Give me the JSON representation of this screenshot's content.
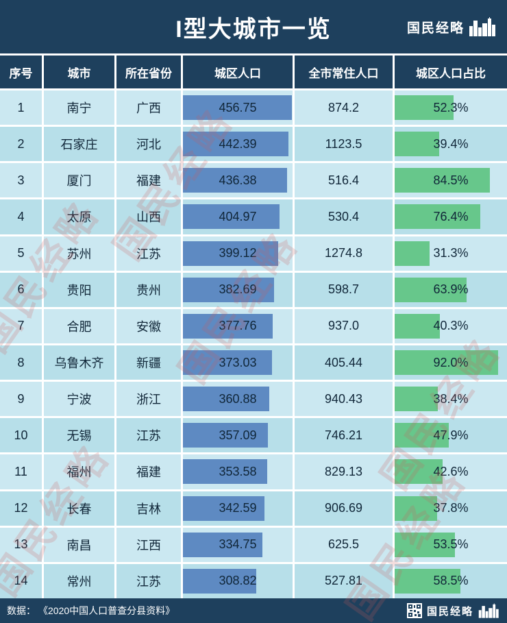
{
  "title": "I型大城市一览",
  "brand": {
    "name": "国民经略"
  },
  "watermark": {
    "text": "国民经略"
  },
  "table": {
    "headers": [
      "序号",
      "城市",
      "所在省份",
      "城区人口",
      "全市常住人口",
      "城区人口占比"
    ],
    "rows": [
      {
        "no": "1",
        "city": "南宁",
        "province": "广西",
        "urban": "456.75",
        "total": "874.2",
        "share": "52.3%"
      },
      {
        "no": "2",
        "city": "石家庄",
        "province": "河北",
        "urban": "442.39",
        "total": "1123.5",
        "share": "39.4%"
      },
      {
        "no": "3",
        "city": "厦门",
        "province": "福建",
        "urban": "436.38",
        "total": "516.4",
        "share": "84.5%"
      },
      {
        "no": "4",
        "city": "太原",
        "province": "山西",
        "urban": "404.97",
        "total": "530.4",
        "share": "76.4%"
      },
      {
        "no": "5",
        "city": "苏州",
        "province": "江苏",
        "urban": "399.12",
        "total": "1274.8",
        "share": "31.3%"
      },
      {
        "no": "6",
        "city": "贵阳",
        "province": "贵州",
        "urban": "382.69",
        "total": "598.7",
        "share": "63.9%"
      },
      {
        "no": "7",
        "city": "合肥",
        "province": "安徽",
        "urban": "377.76",
        "total": "937.0",
        "share": "40.3%"
      },
      {
        "no": "8",
        "city": "乌鲁木齐",
        "province": "新疆",
        "urban": "373.03",
        "total": "405.44",
        "share": "92.0%"
      },
      {
        "no": "9",
        "city": "宁波",
        "province": "浙江",
        "urban": "360.88",
        "total": "940.43",
        "share": "38.4%"
      },
      {
        "no": "10",
        "city": "无锡",
        "province": "江苏",
        "urban": "357.09",
        "total": "746.21",
        "share": "47.9%"
      },
      {
        "no": "11",
        "city": "福州",
        "province": "福建",
        "urban": "353.58",
        "total": "829.13",
        "share": "42.6%"
      },
      {
        "no": "12",
        "city": "长春",
        "province": "吉林",
        "urban": "342.59",
        "total": "906.69",
        "share": "37.8%"
      },
      {
        "no": "13",
        "city": "南昌",
        "province": "江西",
        "urban": "334.75",
        "total": "625.5",
        "share": "53.5%"
      },
      {
        "no": "14",
        "city": "常州",
        "province": "江苏",
        "urban": "308.82",
        "total": "527.81",
        "share": "58.5%"
      }
    ]
  },
  "footer": {
    "source_label": "数据：",
    "source": "《2020中国人口普查分县资料》"
  },
  "colors": {
    "navy": "#1e405d",
    "bar-blue": "#5e8ac2",
    "bar-green": "#67c78b",
    "row-light": "#cbe8f1",
    "row-dark": "#b7dfe9",
    "ink": "#102638"
  },
  "chart_data": {
    "type": "table",
    "title": "I型大城市一览",
    "columns": [
      "序号",
      "城市",
      "所在省份",
      "城区人口",
      "全市常住人口",
      "城区人口占比"
    ],
    "rows": [
      [
        1,
        "南宁",
        "广西",
        456.75,
        874.2,
        "52.3%"
      ],
      [
        2,
        "石家庄",
        "河北",
        442.39,
        1123.5,
        "39.4%"
      ],
      [
        3,
        "厦门",
        "福建",
        436.38,
        516.4,
        "84.5%"
      ],
      [
        4,
        "太原",
        "山西",
        404.97,
        530.4,
        "76.4%"
      ],
      [
        5,
        "苏州",
        "江苏",
        399.12,
        1274.8,
        "31.3%"
      ],
      [
        6,
        "贵阳",
        "贵州",
        382.69,
        598.7,
        "63.9%"
      ],
      [
        7,
        "合肥",
        "安徽",
        377.76,
        937.0,
        "40.3%"
      ],
      [
        8,
        "乌鲁木齐",
        "新疆",
        373.03,
        405.44,
        "92.0%"
      ],
      [
        9,
        "宁波",
        "浙江",
        360.88,
        940.43,
        "38.4%"
      ],
      [
        10,
        "无锡",
        "江苏",
        357.09,
        746.21,
        "47.9%"
      ],
      [
        11,
        "福州",
        "福建",
        353.58,
        829.13,
        "42.6%"
      ],
      [
        12,
        "长春",
        "吉林",
        342.59,
        906.69,
        "37.8%"
      ],
      [
        13,
        "南昌",
        "江西",
        334.75,
        625.5,
        "53.5%"
      ],
      [
        14,
        "常州",
        "江苏",
        308.82,
        527.81,
        "58.5%"
      ]
    ],
    "layout_hints": {
      "urban_pop_bars": "blue horizontal bars scaled to max 460",
      "share_bars": "green horizontal bars scaled to 100%",
      "source": "《2020中国人口普查分县资料》"
    }
  }
}
